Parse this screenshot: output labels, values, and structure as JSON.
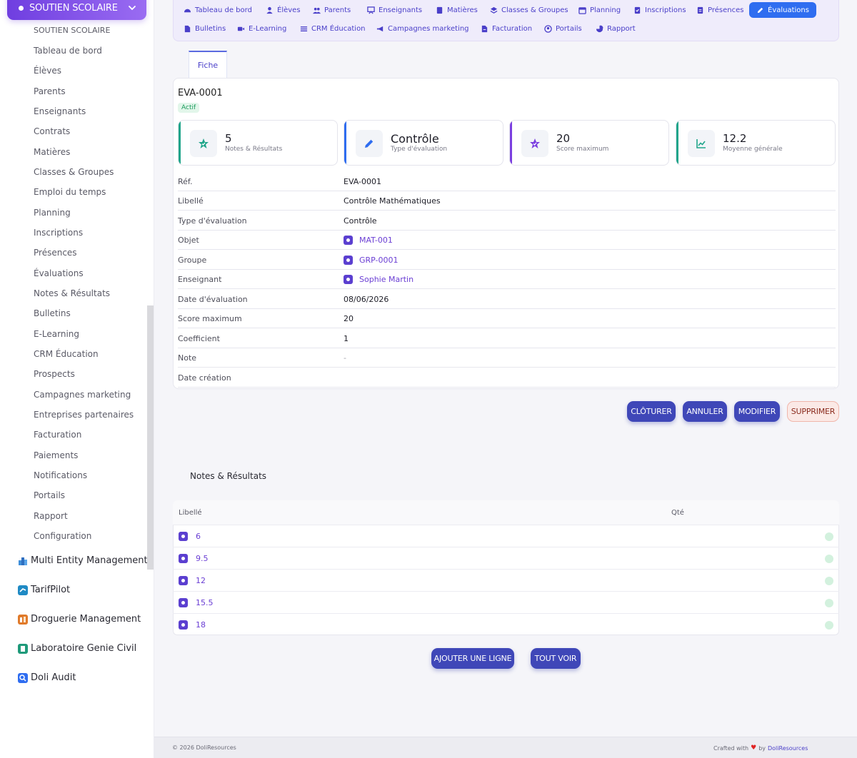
{
  "sidebar": {
    "module": {
      "label": "SOUTIEN SCOLAIRE"
    },
    "items": [
      {
        "label": "SOUTIEN SCOLAIRE"
      },
      {
        "label": "Tableau de bord"
      },
      {
        "label": "Élèves"
      },
      {
        "label": "Parents"
      },
      {
        "label": "Enseignants"
      },
      {
        "label": "Contrats"
      },
      {
        "label": "Matières"
      },
      {
        "label": "Classes & Groupes"
      },
      {
        "label": "Emploi du temps"
      },
      {
        "label": "Planning"
      },
      {
        "label": "Inscriptions"
      },
      {
        "label": "Présences"
      },
      {
        "label": "Évaluations"
      },
      {
        "label": "Notes & Résultats"
      },
      {
        "label": "Bulletins"
      },
      {
        "label": "E-Learning"
      },
      {
        "label": "CRM Éducation"
      },
      {
        "label": "Prospects"
      },
      {
        "label": "Campagnes marketing"
      },
      {
        "label": "Entreprises partenaires"
      },
      {
        "label": "Facturation"
      },
      {
        "label": "Paiements"
      },
      {
        "label": "Notifications"
      },
      {
        "label": "Portails"
      },
      {
        "label": "Rapport"
      },
      {
        "label": "Configuration"
      }
    ],
    "groups": [
      {
        "label": "Multi Entity Management",
        "color": "#3f8fd9"
      },
      {
        "label": "TarifPilot",
        "color": "#1f8ac4"
      },
      {
        "label": "Droguerie Management",
        "color": "#e07a2a"
      },
      {
        "label": "Laboratoire Genie Civil",
        "color": "#1f9a7a"
      },
      {
        "label": "Doli Audit",
        "color": "#2f6df0"
      }
    ]
  },
  "topnav": {
    "row1": [
      "Tableau de bord",
      "Élèves",
      "Parents",
      "Enseignants",
      "Matières",
      "Classes & Groupes",
      "Planning",
      "Inscriptions",
      "Présences",
      "Évaluations"
    ],
    "row2": [
      "Bulletins",
      "E-Learning",
      "CRM Éducation",
      "Campagnes marketing",
      "Facturation",
      "Portails",
      "Rapport"
    ],
    "active": "Évaluations"
  },
  "tab": {
    "label": "Fiche"
  },
  "record": {
    "ref": "EVA-0001",
    "status": "Actif"
  },
  "kpis": [
    {
      "value": "5",
      "label": "Notes & Résultats",
      "color": "#20a58a",
      "icon": "star-check-icon"
    },
    {
      "value": "Contrôle",
      "label": "Type d'évaluation",
      "color": "#2f6df0",
      "icon": "pencil-icon"
    },
    {
      "value": "20",
      "label": "Score maximum",
      "color": "#7b3fe0",
      "icon": "star-check-icon"
    },
    {
      "value": "12.2",
      "label": "Moyenne générale",
      "color": "#20a58a",
      "icon": "chart-line-icon"
    }
  ],
  "details": [
    {
      "label": "Réf.",
      "value": "EVA-0001",
      "type": "text"
    },
    {
      "label": "Libellé",
      "value": "Contrôle Mathématiques",
      "type": "text"
    },
    {
      "label": "Type d'évaluation",
      "value": "Contrôle",
      "type": "text"
    },
    {
      "label": "Objet",
      "value": "MAT-001",
      "type": "link"
    },
    {
      "label": "Groupe",
      "value": "GRP-0001",
      "type": "link"
    },
    {
      "label": "Enseignant",
      "value": "Sophie Martin",
      "type": "link"
    },
    {
      "label": "Date d'évaluation",
      "value": "08/06/2026",
      "type": "text"
    },
    {
      "label": "Score maximum",
      "value": "20",
      "type": "text"
    },
    {
      "label": "Coefficient",
      "value": "1",
      "type": "text"
    },
    {
      "label": "Note",
      "value": "-",
      "type": "muted"
    },
    {
      "label": "Date création",
      "value": "",
      "type": "text"
    }
  ],
  "actions": {
    "close": "CLÔTURER",
    "cancel": "ANNULER",
    "edit": "MODIFIER",
    "delete": "SUPPRIMER"
  },
  "results": {
    "title": "Notes & Résultats",
    "col_label": "Libellé",
    "col_qty": "Qté",
    "rows": [
      "6",
      "9.5",
      "12",
      "15.5",
      "18"
    ],
    "add_line": "AJOUTER UNE LIGNE",
    "see_all": "TOUT VOIR"
  },
  "footer": {
    "copyright": "© 2026 DoliResources",
    "crafted_with": "Crafted with",
    "by": "by",
    "brand": "DoliResources"
  }
}
